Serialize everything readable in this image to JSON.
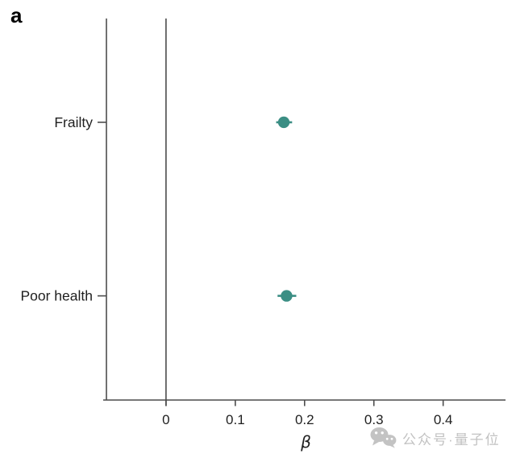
{
  "panel": {
    "label": "a"
  },
  "colors": {
    "point": "#3b8e84",
    "axis": "#4c4c4c",
    "text": "#1f1f1f",
    "watermark": "#c3c3c3"
  },
  "chart_data": {
    "type": "scatter",
    "subtype": "horizontal-dot-plot-with-error-bars",
    "categories": [
      "Frailty",
      "Poor health"
    ],
    "series": [
      {
        "name": "effect-size",
        "values": [
          0.17,
          0.174
        ],
        "ci_low": [
          0.159,
          0.161
        ],
        "ci_high": [
          0.182,
          0.188
        ]
      }
    ],
    "title": "",
    "xlabel": "β",
    "ylabel": "",
    "x_ticks": [
      0,
      0.1,
      0.2,
      0.3,
      0.4
    ],
    "x_tick_labels": [
      "0",
      "0.1",
      "0.2",
      "0.3",
      "0.4"
    ],
    "xlim": [
      -0.086,
      0.49
    ],
    "zero_reference_line": 0,
    "grid": false,
    "legend": false
  },
  "watermark": {
    "icon": "wechat-icon",
    "text": "公众号·量子位"
  }
}
